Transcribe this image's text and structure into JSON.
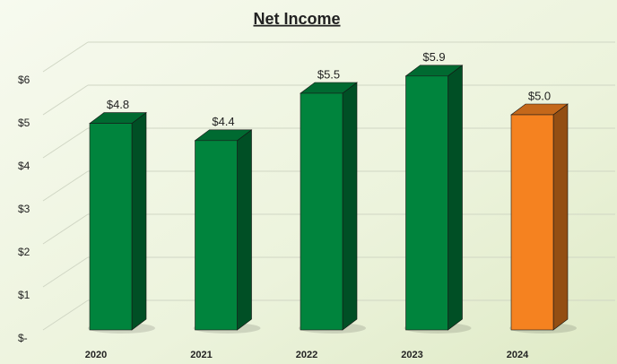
{
  "chart_data": {
    "type": "bar3d",
    "title": "Net Income",
    "categories": [
      "2020",
      "2021",
      "2022",
      "2023",
      "2024"
    ],
    "values": [
      4.8,
      4.4,
      5.5,
      5.9,
      5.0
    ],
    "value_labels": [
      "$4.8",
      "$4.4",
      "$5.5",
      "$5.9",
      "$5.0"
    ],
    "colors": [
      "#00843d",
      "#00843d",
      "#00843d",
      "#00843d",
      "#f58220"
    ],
    "ylim": [
      0,
      6
    ],
    "yticks": [
      {
        "value": 0,
        "label": "$-"
      },
      {
        "value": 1,
        "label": "$1"
      },
      {
        "value": 2,
        "label": "$2"
      },
      {
        "value": 3,
        "label": "$3"
      },
      {
        "value": 4,
        "label": "$4"
      },
      {
        "value": 5,
        "label": "$5"
      },
      {
        "value": 6,
        "label": "$6"
      }
    ],
    "grid": true
  }
}
